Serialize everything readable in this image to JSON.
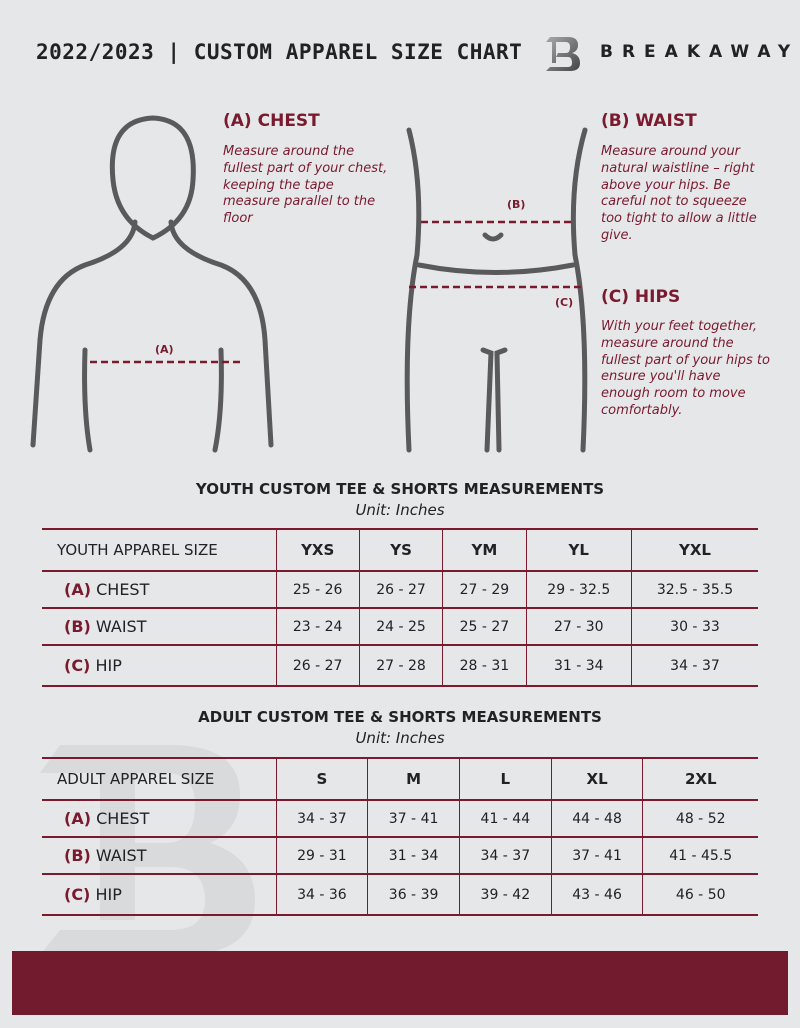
{
  "header": {
    "title": "2022/2023  |  CUSTOM APPAREL SIZE CHART",
    "brand": "BREAKAWAY"
  },
  "guide": {
    "chest": {
      "heading": "(A) CHEST",
      "marker": "(A)",
      "text": "Measure around the fullest part of your chest, keeping the tape measure parallel to the floor"
    },
    "waist": {
      "heading": "(B) WAIST",
      "marker": "(B)",
      "text": "Measure around your natural waistline – right above your hips. Be careful not to squeeze too tight to allow a little give."
    },
    "hips": {
      "heading": "(C) HIPS",
      "marker": "(C)",
      "text": "With your feet together, measure around the fullest part of your hips to ensure you'll have enough room to move comfortably."
    }
  },
  "youth": {
    "title": "YOUTH CUSTOM TEE & SHORTS MEASUREMENTS",
    "unit": "Unit: Inches",
    "header": [
      "YOUTH APPAREL SIZE",
      "YXS",
      "YS",
      "YM",
      "YL",
      "YXL"
    ],
    "rows": [
      {
        "letter": "(A)",
        "name": "CHEST",
        "values": [
          "25 - 26",
          "26 - 27",
          "27 - 29",
          "29 - 32.5",
          "32.5 - 35.5"
        ]
      },
      {
        "letter": "(B)",
        "name": "WAIST",
        "values": [
          "23 - 24",
          "24 - 25",
          "25 - 27",
          "27 - 30",
          "30 - 33"
        ]
      },
      {
        "letter": "(C)",
        "name": "HIP",
        "values": [
          "26 - 27",
          "27 - 28",
          "28 - 31",
          "31 - 34",
          "34 - 37"
        ]
      }
    ]
  },
  "adult": {
    "title": "ADULT CUSTOM TEE & SHORTS MEASUREMENTS",
    "unit": "Unit: Inches",
    "header": [
      "ADULT APPAREL SIZE",
      "S",
      "M",
      "L",
      "XL",
      "2XL"
    ],
    "rows": [
      {
        "letter": "(A)",
        "name": "CHEST",
        "values": [
          "34 - 37",
          "37 - 41",
          "41 - 44",
          "44 - 48",
          "48 - 52"
        ]
      },
      {
        "letter": "(B)",
        "name": "WAIST",
        "values": [
          "29 - 31",
          "31 - 34",
          "34 - 37",
          "37 - 41",
          "41 - 45.5"
        ]
      },
      {
        "letter": "(C)",
        "name": "HIP",
        "values": [
          "34 - 36",
          "36 - 39",
          "39 - 42",
          "43 - 46",
          "46 - 50"
        ]
      }
    ]
  },
  "colors": {
    "accent": "#7a1a2f",
    "footer": "#721a2e",
    "background": "#e6e7e9"
  }
}
